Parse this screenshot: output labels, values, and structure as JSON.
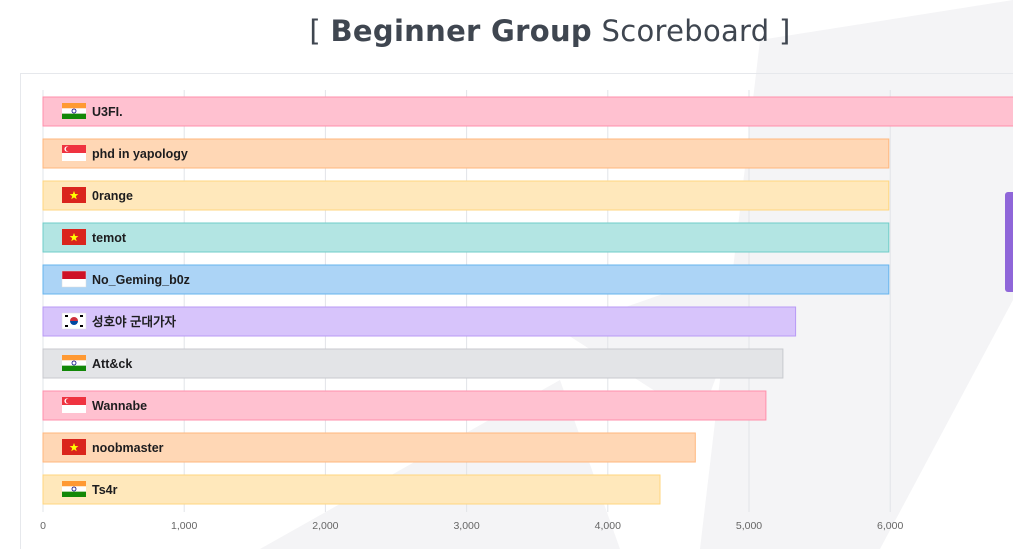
{
  "header": {
    "bracket_open": "[",
    "title_bold": "Beginner Group",
    "title_rest": "Scoreboard",
    "bracket_close": "]"
  },
  "chart_data": {
    "type": "bar",
    "orientation": "horizontal",
    "title": "[ Beginner Group Scoreboard ]",
    "xlim": [
      0,
      6900
    ],
    "x_ticks": [
      "0",
      "1,000",
      "2,000",
      "3,000",
      "4,000",
      "5,000",
      "6,000"
    ],
    "x_tick_values": [
      0,
      1000,
      2000,
      3000,
      4000,
      5000,
      6000
    ],
    "grid": true,
    "categories": [
      "U3FI.",
      "phd in yapology",
      "0range",
      "temot",
      "No_Geming_b0z",
      "성호야 군대가자",
      "Att&ck",
      "Wannabe",
      "noobmaster",
      "Ts4r"
    ],
    "values": [
      6880,
      5990,
      5990,
      5990,
      5990,
      5330,
      5240,
      5120,
      4620,
      4370
    ],
    "flags": [
      "india",
      "singapore",
      "vietnam",
      "vietnam",
      "indonesia",
      "south-korea",
      "india",
      "singapore",
      "vietnam",
      "india"
    ],
    "colors": [
      "#ffc1d0",
      "#ffd7b5",
      "#ffe8bb",
      "#b3e5e3",
      "#acd4f6",
      "#d7c4fb",
      "#e3e4e7",
      "#ffc1d0",
      "#ffd7b5",
      "#ffe8bb"
    ],
    "border_colors": [
      "#ff8fab",
      "#ffb77d",
      "#ffd67f",
      "#6fcdc8",
      "#66b4ee",
      "#b89af6",
      "#c8cacf",
      "#ff8fab",
      "#ffb77d",
      "#ffd67f"
    ]
  },
  "flag_colors": {
    "india": [
      "#ff9933",
      "#ffffff",
      "#138808",
      "#000080"
    ],
    "singapore": [
      "#ef3340",
      "#ffffff"
    ],
    "vietnam": [
      "#da251d",
      "#ffff00"
    ],
    "indonesia": [
      "#ce1126",
      "#ffffff"
    ],
    "south-korea": [
      "#ffffff",
      "#cd2e3a",
      "#0047a0",
      "#000000"
    ]
  },
  "accent_color": "#8f66d9"
}
